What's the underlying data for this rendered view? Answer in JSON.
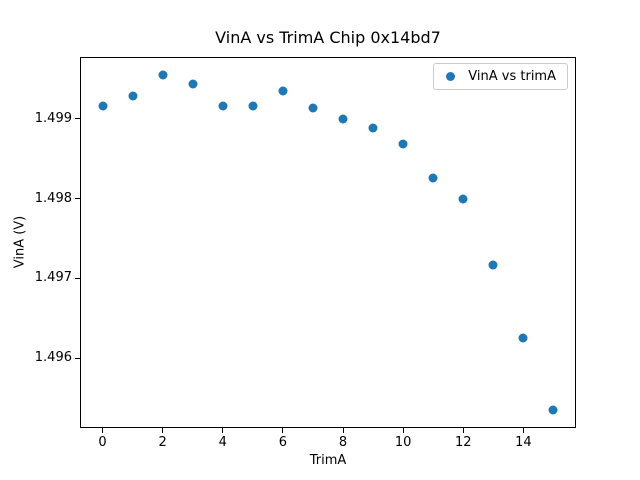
{
  "chart_data": {
    "type": "scatter",
    "title": "VinA vs TrimA Chip 0x14bd7",
    "xlabel": "TrimA",
    "ylabel": "VinA (V)",
    "x": [
      0,
      1,
      2,
      3,
      4,
      5,
      6,
      7,
      8,
      9,
      10,
      11,
      12,
      13,
      14,
      15
    ],
    "series": [
      {
        "name": "VinA vs trimA",
        "values": [
          1.49916,
          1.49928,
          1.49955,
          1.49943,
          1.49916,
          1.49916,
          1.49934,
          1.49913,
          1.499,
          1.49888,
          1.49868,
          1.49826,
          1.498,
          1.49717,
          1.49625,
          1.49536
        ]
      }
    ],
    "xlim": [
      -0.75,
      15.75
    ],
    "ylim": [
      1.49513,
      1.49977
    ],
    "xtick_values": [
      0,
      2,
      4,
      6,
      8,
      10,
      12,
      14
    ],
    "xtick_labels": [
      "0",
      "2",
      "4",
      "6",
      "8",
      "10",
      "12",
      "14"
    ],
    "ytick_values": [
      1.496,
      1.497,
      1.498,
      1.499
    ],
    "ytick_labels": [
      "1.496",
      "1.497",
      "1.498",
      "1.499"
    ],
    "grid": false,
    "legend_position": "upper right",
    "marker_color": "#1f77b4",
    "background_color": "#ffffff",
    "spine_color": "#000000"
  }
}
